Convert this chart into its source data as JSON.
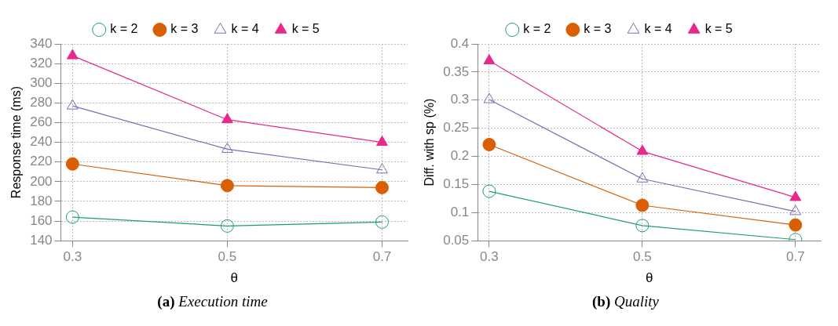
{
  "chart_data": [
    {
      "type": "line",
      "title": "(a) Execution time",
      "xlabel": "θ",
      "ylabel": "Response time (ms)",
      "x": [
        0.3,
        0.5,
        0.7
      ],
      "xlim": [
        0.285,
        0.733
      ],
      "xticks": [
        0.3,
        0.5,
        0.7
      ],
      "ylim": [
        140,
        340
      ],
      "yticks": [
        140,
        160,
        180,
        200,
        220,
        240,
        260,
        280,
        300,
        320,
        340
      ],
      "grid": true,
      "legend": "top",
      "line_style": "solid",
      "series": [
        {
          "name": "k = 2",
          "color": "#1b9e77",
          "marker": "circle",
          "values": [
            164,
            155,
            159
          ]
        },
        {
          "name": "k = 3",
          "color": "#d95f02",
          "marker": "circle",
          "values": [
            218,
            196,
            194
          ]
        },
        {
          "name": "k = 4",
          "color": "#7570b3",
          "marker": "triangle",
          "values": [
            277,
            233,
            212
          ]
        },
        {
          "name": "k = 5",
          "color": "#e7298a",
          "marker": "triangle",
          "values": [
            328,
            263,
            240
          ]
        }
      ]
    },
    {
      "type": "line",
      "title": "(b) Quality",
      "xlabel": "θ",
      "ylabel": "Diff. with sp (%)",
      "x": [
        0.3,
        0.5,
        0.7
      ],
      "xlim": [
        0.285,
        0.733
      ],
      "xticks": [
        0.3,
        0.5,
        0.7
      ],
      "ylim": [
        0.05,
        0.4
      ],
      "yticks": [
        0.05,
        0.1,
        0.15,
        0.2,
        0.25,
        0.3,
        0.35,
        0.4
      ],
      "grid": true,
      "legend": "top",
      "line_style": "solid",
      "series": [
        {
          "name": "k = 2",
          "color": "#1b9e77",
          "marker": "circle",
          "values": [
            0.138,
            0.077,
            0.052
          ]
        },
        {
          "name": "k = 3",
          "color": "#d95f02",
          "marker": "circle",
          "values": [
            0.221,
            0.113,
            0.078
          ]
        },
        {
          "name": "k = 4",
          "color": "#7570b3",
          "marker": "triangle",
          "values": [
            0.301,
            0.16,
            0.102
          ]
        },
        {
          "name": "k = 5",
          "color": "#e7298a",
          "marker": "triangle",
          "values": [
            0.37,
            0.209,
            0.127
          ]
        }
      ]
    }
  ]
}
